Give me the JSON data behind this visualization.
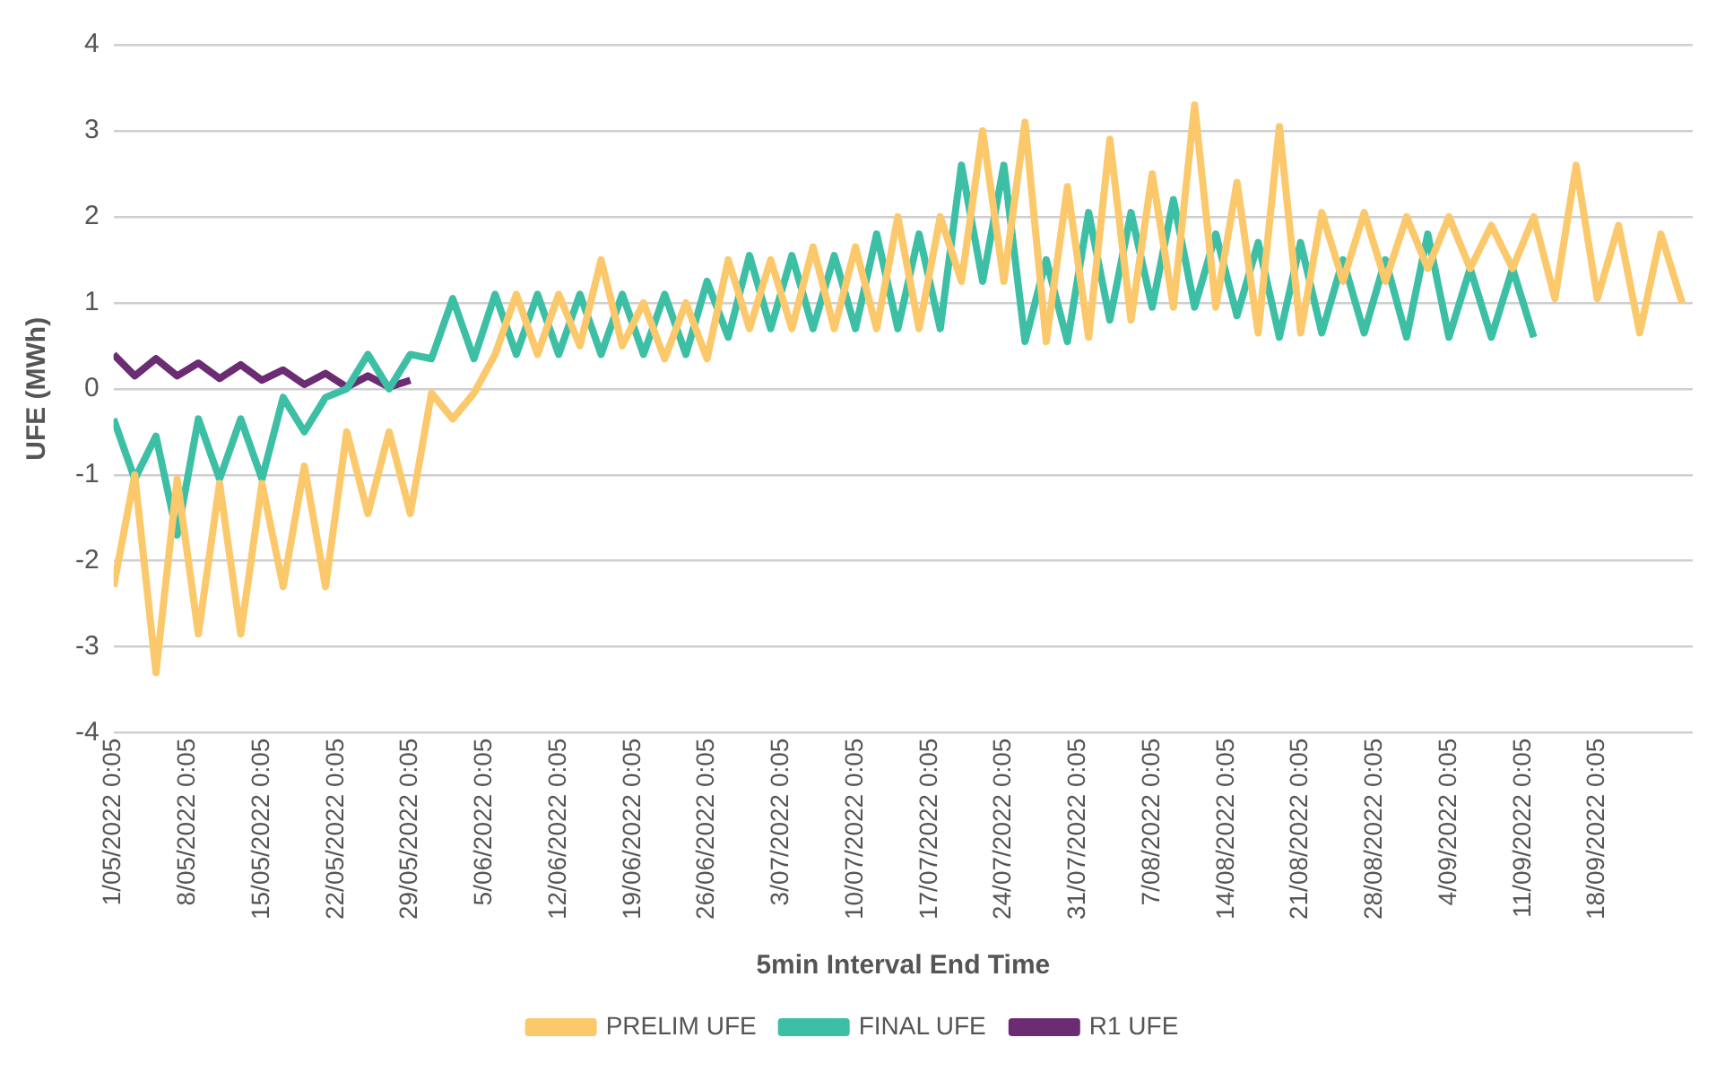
{
  "chart_data": {
    "type": "line",
    "xlabel": "5min Interval End Time",
    "ylabel": "UFE (MWh)",
    "xlim": [
      "2022-05-01T00:00",
      "2022-09-27T00:00"
    ],
    "xticks": [
      {
        "value": "2022-05-01T00:05",
        "label": "1/05/2022 0:05"
      },
      {
        "value": "2022-05-08T00:05",
        "label": "8/05/2022 0:05"
      },
      {
        "value": "2022-05-15T00:05",
        "label": "15/05/2022 0:05"
      },
      {
        "value": "2022-05-22T00:05",
        "label": "22/05/2022 0:05"
      },
      {
        "value": "2022-05-29T00:05",
        "label": "29/05/2022 0:05"
      },
      {
        "value": "2022-06-05T00:05",
        "label": "5/06/2022 0:05"
      },
      {
        "value": "2022-06-12T00:05",
        "label": "12/06/2022 0:05"
      },
      {
        "value": "2022-06-19T00:05",
        "label": "19/06/2022 0:05"
      },
      {
        "value": "2022-06-26T00:05",
        "label": "26/06/2022 0:05"
      },
      {
        "value": "2022-07-03T00:05",
        "label": "3/07/2022 0:05"
      },
      {
        "value": "2022-07-10T00:05",
        "label": "10/07/2022 0:05"
      },
      {
        "value": "2022-07-17T00:05",
        "label": "17/07/2022 0:05"
      },
      {
        "value": "2022-07-24T00:05",
        "label": "24/07/2022 0:05"
      },
      {
        "value": "2022-07-31T00:05",
        "label": "31/07/2022 0:05"
      },
      {
        "value": "2022-08-07T00:05",
        "label": "7/08/2022 0:05"
      },
      {
        "value": "2022-08-14T00:05",
        "label": "14/08/2022 0:05"
      },
      {
        "value": "2022-08-21T00:05",
        "label": "21/08/2022 0:05"
      },
      {
        "value": "2022-08-28T00:05",
        "label": "28/08/2022 0:05"
      },
      {
        "value": "2022-09-04T00:05",
        "label": "4/09/2022 0:05"
      },
      {
        "value": "2022-09-11T00:05",
        "label": "11/09/2022 0:05"
      },
      {
        "value": "2022-09-18T00:05",
        "label": "18/09/2022 0:05"
      }
    ],
    "ylim": [
      -4,
      4
    ],
    "yticks": [
      -4,
      -3,
      -2,
      -1,
      0,
      1,
      2,
      3,
      4
    ],
    "grid": "y",
    "legend": "bottom",
    "marker": "none",
    "line_style": "solid",
    "series": [
      {
        "name": "PRELIM UFE",
        "color": "#fbc96b",
        "x": [
          "2022-05-01",
          "2022-05-03",
          "2022-05-05",
          "2022-05-07",
          "2022-05-09",
          "2022-05-11",
          "2022-05-13",
          "2022-05-15",
          "2022-05-17",
          "2022-05-19",
          "2022-05-21",
          "2022-05-23",
          "2022-05-25",
          "2022-05-27",
          "2022-05-29",
          "2022-05-31",
          "2022-06-02",
          "2022-06-04",
          "2022-06-06",
          "2022-06-08",
          "2022-06-10",
          "2022-06-12",
          "2022-06-14",
          "2022-06-16",
          "2022-06-18",
          "2022-06-20",
          "2022-06-22",
          "2022-06-24",
          "2022-06-26",
          "2022-06-28",
          "2022-06-30",
          "2022-07-02",
          "2022-07-04",
          "2022-07-06",
          "2022-07-08",
          "2022-07-10",
          "2022-07-12",
          "2022-07-14",
          "2022-07-16",
          "2022-07-18",
          "2022-07-20",
          "2022-07-22",
          "2022-07-24",
          "2022-07-26",
          "2022-07-28",
          "2022-07-30",
          "2022-08-01",
          "2022-08-03",
          "2022-08-05",
          "2022-08-07",
          "2022-08-09",
          "2022-08-11",
          "2022-08-13",
          "2022-08-15",
          "2022-08-17",
          "2022-08-19",
          "2022-08-21",
          "2022-08-23",
          "2022-08-25",
          "2022-08-27",
          "2022-08-29",
          "2022-08-31",
          "2022-09-02",
          "2022-09-04",
          "2022-09-06",
          "2022-09-08",
          "2022-09-10",
          "2022-09-12",
          "2022-09-14",
          "2022-09-16",
          "2022-09-18",
          "2022-09-20",
          "2022-09-22",
          "2022-09-24",
          "2022-09-26"
        ],
        "values": [
          -2.3,
          -1.0,
          -3.3,
          -1.05,
          -2.85,
          -1.1,
          -2.85,
          -1.1,
          -2.3,
          -0.9,
          -2.3,
          -0.5,
          -1.45,
          -0.5,
          -1.45,
          -0.05,
          -0.35,
          -0.05,
          0.4,
          1.1,
          0.4,
          1.1,
          0.5,
          1.5,
          0.5,
          1.0,
          0.35,
          1.0,
          0.35,
          1.5,
          0.7,
          1.5,
          0.7,
          1.65,
          0.7,
          1.65,
          0.7,
          2.0,
          0.7,
          2.0,
          1.25,
          3.0,
          1.25,
          3.1,
          0.55,
          2.35,
          0.6,
          2.9,
          0.8,
          2.5,
          0.95,
          3.3,
          0.95,
          2.4,
          0.65,
          3.05,
          0.65,
          2.05,
          1.25,
          2.05,
          1.25,
          2.0,
          1.4,
          2.0,
          1.4,
          1.9,
          1.4,
          2.0,
          1.05,
          2.6,
          1.05,
          1.9,
          0.65,
          1.8,
          1.0
        ]
      },
      {
        "name": "FINAL UFE",
        "color": "#3dbfa5",
        "x": [
          "2022-05-01",
          "2022-05-03",
          "2022-05-05",
          "2022-05-07",
          "2022-05-09",
          "2022-05-11",
          "2022-05-13",
          "2022-05-15",
          "2022-05-17",
          "2022-05-19",
          "2022-05-21",
          "2022-05-23",
          "2022-05-25",
          "2022-05-27",
          "2022-05-29",
          "2022-05-31",
          "2022-06-02",
          "2022-06-04",
          "2022-06-06",
          "2022-06-08",
          "2022-06-10",
          "2022-06-12",
          "2022-06-14",
          "2022-06-16",
          "2022-06-18",
          "2022-06-20",
          "2022-06-22",
          "2022-06-24",
          "2022-06-26",
          "2022-06-28",
          "2022-06-30",
          "2022-07-02",
          "2022-07-04",
          "2022-07-06",
          "2022-07-08",
          "2022-07-10",
          "2022-07-12",
          "2022-07-14",
          "2022-07-16",
          "2022-07-18",
          "2022-07-20",
          "2022-07-22",
          "2022-07-24",
          "2022-07-26",
          "2022-07-28",
          "2022-07-30",
          "2022-08-01",
          "2022-08-03",
          "2022-08-05",
          "2022-08-07",
          "2022-08-09",
          "2022-08-11",
          "2022-08-13",
          "2022-08-15",
          "2022-08-17",
          "2022-08-19",
          "2022-08-21",
          "2022-08-23",
          "2022-08-25",
          "2022-08-27",
          "2022-08-29",
          "2022-08-31",
          "2022-09-02",
          "2022-09-04",
          "2022-09-06",
          "2022-09-08",
          "2022-09-10",
          "2022-09-12"
        ],
        "values": [
          -0.35,
          -1.05,
          -0.55,
          -1.7,
          -0.35,
          -1.05,
          -0.35,
          -1.05,
          -0.1,
          -0.5,
          -0.1,
          0.0,
          0.4,
          0.0,
          0.4,
          0.35,
          1.05,
          0.35,
          1.1,
          0.4,
          1.1,
          0.4,
          1.1,
          0.4,
          1.1,
          0.4,
          1.1,
          0.4,
          1.25,
          0.6,
          1.55,
          0.7,
          1.55,
          0.7,
          1.55,
          0.7,
          1.8,
          0.7,
          1.8,
          0.7,
          2.6,
          1.25,
          2.6,
          0.55,
          1.5,
          0.55,
          2.05,
          0.8,
          2.05,
          0.95,
          2.2,
          0.95,
          1.8,
          0.85,
          1.7,
          0.6,
          1.7,
          0.65,
          1.5,
          0.65,
          1.5,
          0.6,
          1.8,
          0.6,
          1.4,
          0.6,
          1.4,
          0.6
        ]
      },
      {
        "name": "R1 UFE",
        "color": "#6b2c74",
        "x": [
          "2022-05-01",
          "2022-05-03",
          "2022-05-05",
          "2022-05-07",
          "2022-05-09",
          "2022-05-11",
          "2022-05-13",
          "2022-05-15",
          "2022-05-17",
          "2022-05-19",
          "2022-05-21",
          "2022-05-23",
          "2022-05-25",
          "2022-05-27",
          "2022-05-29"
        ],
        "values": [
          0.4,
          0.15,
          0.35,
          0.15,
          0.3,
          0.12,
          0.28,
          0.1,
          0.22,
          0.05,
          0.18,
          0.02,
          0.15,
          0.02,
          0.1
        ]
      }
    ]
  }
}
